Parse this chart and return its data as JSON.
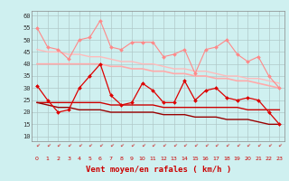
{
  "x": [
    0,
    1,
    2,
    3,
    4,
    5,
    6,
    7,
    8,
    9,
    10,
    11,
    12,
    13,
    14,
    15,
    16,
    17,
    18,
    19,
    20,
    21,
    22,
    23
  ],
  "line1": [
    55,
    47,
    46,
    42,
    50,
    51,
    58,
    47,
    46,
    49,
    49,
    49,
    43,
    44,
    46,
    36,
    46,
    47,
    50,
    44,
    41,
    43,
    35,
    30
  ],
  "line2": [
    31,
    25,
    20,
    21,
    30,
    35,
    40,
    27,
    23,
    24,
    32,
    29,
    24,
    24,
    33,
    25,
    29,
    30,
    26,
    25,
    26,
    25,
    20,
    15
  ],
  "line3_smooth": [
    40,
    40,
    40,
    40,
    40,
    40,
    40,
    39,
    39,
    38,
    38,
    37,
    37,
    36,
    36,
    35,
    35,
    34,
    34,
    33,
    33,
    32,
    31,
    30
  ],
  "line4_smooth": [
    46,
    45,
    45,
    44,
    44,
    43,
    43,
    42,
    41,
    41,
    40,
    40,
    39,
    38,
    38,
    37,
    37,
    36,
    35,
    35,
    34,
    34,
    33,
    32
  ],
  "line5_flat": [
    24,
    24,
    24,
    24,
    24,
    24,
    24,
    23,
    23,
    23,
    23,
    23,
    22,
    22,
    22,
    22,
    22,
    22,
    22,
    22,
    21,
    21,
    21,
    21
  ],
  "line6_decline": [
    24,
    23,
    22,
    22,
    21,
    21,
    21,
    20,
    20,
    20,
    20,
    20,
    19,
    19,
    19,
    18,
    18,
    18,
    17,
    17,
    17,
    16,
    15,
    15
  ],
  "xlabel": "Vent moyen/en rafales ( km/h )",
  "ylim": [
    8,
    62
  ],
  "xlim": [
    -0.5,
    23.5
  ],
  "yticks": [
    10,
    15,
    20,
    25,
    30,
    35,
    40,
    45,
    50,
    55,
    60
  ],
  "xticks": [
    0,
    1,
    2,
    3,
    4,
    5,
    6,
    7,
    8,
    9,
    10,
    11,
    12,
    13,
    14,
    15,
    16,
    17,
    18,
    19,
    20,
    21,
    22,
    23
  ],
  "bg_color": "#cff0f0",
  "grid_color": "#b0c8c8",
  "line1_color": "#ff8888",
  "line2_color": "#dd0000",
  "line3_color": "#ffaaaa",
  "line4_color": "#ffbbbb",
  "line5_color": "#cc0000",
  "line6_color": "#990000",
  "xlabel_color": "#cc0000",
  "tick_color": "#cc0000",
  "ytick_color": "#333333"
}
